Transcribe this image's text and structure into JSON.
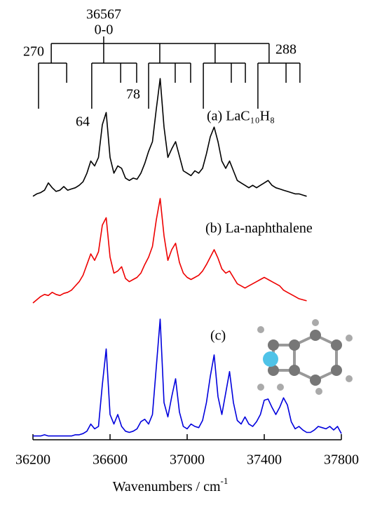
{
  "chart_data": {
    "type": "line",
    "xlabel": "Wavenumbers / cm",
    "xlabel_superscript": "-1",
    "xlim": [
      36200,
      37800
    ],
    "xticks": [
      36200,
      36600,
      37000,
      37400,
      37800
    ],
    "ylim": [
      0,
      1
    ],
    "x": [
      36200,
      36220,
      36240,
      36260,
      36280,
      36300,
      36320,
      36340,
      36360,
      36380,
      36400,
      36420,
      36440,
      36460,
      36480,
      36500,
      36520,
      36540,
      36560,
      36580,
      36600,
      36620,
      36640,
      36660,
      36680,
      36700,
      36720,
      36740,
      36760,
      36780,
      36800,
      36820,
      36840,
      36860,
      36880,
      36900,
      36920,
      36940,
      36960,
      36980,
      37000,
      37020,
      37040,
      37060,
      37080,
      37100,
      37120,
      37140,
      37160,
      37180,
      37200,
      37220,
      37240,
      37260,
      37280,
      37300,
      37320,
      37340,
      37360,
      37380,
      37400,
      37420,
      37440,
      37460,
      37480,
      37500,
      37520,
      37540,
      37560,
      37580,
      37600,
      37620,
      37640,
      37660,
      37680,
      37700,
      37720,
      37740,
      37760,
      37780,
      37800
    ],
    "series": [
      {
        "name": "(a) LaC₁₀H₈",
        "color": "#000000",
        "values": [
          0.03,
          0.05,
          0.06,
          0.08,
          0.14,
          0.1,
          0.07,
          0.08,
          0.11,
          0.08,
          0.09,
          0.1,
          0.12,
          0.15,
          0.22,
          0.32,
          0.28,
          0.35,
          0.62,
          0.72,
          0.35,
          0.22,
          0.28,
          0.26,
          0.18,
          0.16,
          0.18,
          0.17,
          0.22,
          0.3,
          0.4,
          0.48,
          0.75,
          1.0,
          0.6,
          0.35,
          0.42,
          0.48,
          0.36,
          0.24,
          0.22,
          0.2,
          0.24,
          0.22,
          0.26,
          0.38,
          0.52,
          0.6,
          0.48,
          0.32,
          0.26,
          0.32,
          0.24,
          0.16,
          0.14,
          0.12,
          0.1,
          0.12,
          0.1,
          0.12,
          0.14,
          0.16,
          0.12,
          0.1,
          0.09,
          0.08,
          0.07,
          0.06,
          0.05,
          0.05,
          0.04,
          0.03,
          null,
          null,
          null,
          null,
          null,
          null,
          null,
          null,
          null
        ]
      },
      {
        "name": "(b) La-naphthalene",
        "color": "#ee0000",
        "values": [
          0.02,
          0.05,
          0.08,
          0.1,
          0.09,
          0.12,
          0.1,
          0.09,
          0.11,
          0.12,
          0.14,
          0.18,
          0.22,
          0.28,
          0.38,
          0.48,
          0.42,
          0.5,
          0.75,
          0.82,
          0.45,
          0.3,
          0.32,
          0.36,
          0.25,
          0.22,
          0.24,
          0.26,
          0.3,
          0.38,
          0.45,
          0.55,
          0.8,
          1.0,
          0.65,
          0.42,
          0.52,
          0.58,
          0.4,
          0.3,
          0.26,
          0.24,
          0.26,
          0.28,
          0.32,
          0.38,
          0.45,
          0.52,
          0.44,
          0.34,
          0.3,
          0.32,
          0.26,
          0.2,
          0.18,
          0.16,
          0.18,
          0.2,
          0.22,
          0.24,
          0.26,
          0.24,
          0.22,
          0.2,
          0.18,
          0.14,
          0.12,
          0.1,
          0.08,
          0.06,
          0.05,
          0.04,
          null,
          null,
          null,
          null,
          null,
          null,
          null,
          null,
          null
        ]
      },
      {
        "name": "(c)",
        "color": "#0000dd",
        "values": [
          0.02,
          0.02,
          0.02,
          0.03,
          0.02,
          0.02,
          0.02,
          0.02,
          0.02,
          0.02,
          0.02,
          0.03,
          0.03,
          0.04,
          0.06,
          0.12,
          0.08,
          0.1,
          0.45,
          0.75,
          0.2,
          0.12,
          0.2,
          0.1,
          0.06,
          0.05,
          0.06,
          0.08,
          0.14,
          0.16,
          0.12,
          0.2,
          0.6,
          1.0,
          0.3,
          0.18,
          0.35,
          0.5,
          0.22,
          0.1,
          0.08,
          0.12,
          0.1,
          0.09,
          0.15,
          0.3,
          0.52,
          0.7,
          0.35,
          0.2,
          0.38,
          0.56,
          0.3,
          0.15,
          0.12,
          0.18,
          0.12,
          0.1,
          0.14,
          0.2,
          0.32,
          0.33,
          0.26,
          0.2,
          0.26,
          0.34,
          0.28,
          0.14,
          0.08,
          0.1,
          0.07,
          0.05,
          0.05,
          0.07,
          0.1,
          0.09,
          0.08,
          0.1,
          0.07,
          0.1,
          0.04
        ]
      }
    ],
    "stick_groups": [
      [
        36229,
        36295,
        36375
      ],
      [
        36505,
        36567,
        36655,
        36738
      ],
      [
        36800,
        36858,
        36938,
        37018
      ],
      [
        37084,
        37145,
        37229,
        37302
      ],
      [
        37367,
        37425,
        37513,
        37585
      ]
    ],
    "annotations": {
      "origin": "36567",
      "origin_label": "0-0",
      "left": "270",
      "right": "288",
      "mode_64": "64",
      "mode_78": "78"
    }
  }
}
